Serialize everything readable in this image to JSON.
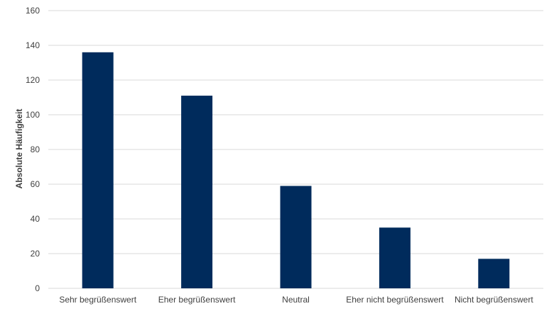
{
  "chart_data": {
    "type": "bar",
    "categories": [
      "Sehr begrüßenswert",
      "Eher begrüßenswert",
      "Neutral",
      "Eher nicht begrüßenswert",
      "Nicht begrüßenswert"
    ],
    "values": [
      136,
      111,
      59,
      35,
      17
    ],
    "ylabel": "Absolute Häufigkeit",
    "xlabel": "",
    "title": "",
    "ylim": [
      0,
      160
    ],
    "yticks": [
      0,
      20,
      40,
      60,
      80,
      100,
      120,
      140,
      160
    ],
    "grid": true,
    "legend": "none",
    "bar_color": "#002b5c"
  }
}
